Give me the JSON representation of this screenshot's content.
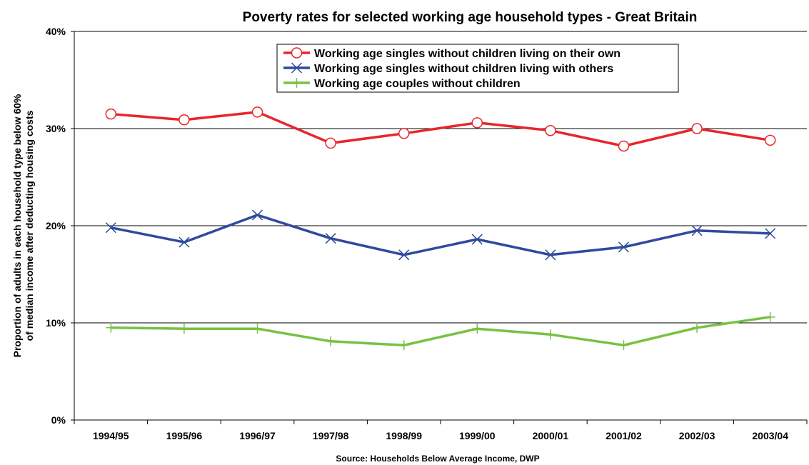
{
  "chart_data": {
    "type": "line",
    "title": "Poverty rates for selected working age household types - Great Britain",
    "ylabel_lines": [
      "Proportion of adults in each household type below 60%",
      "of median income after deducting housing costs"
    ],
    "xlabel": "",
    "source": "Source: Households Below Average Income, DWP",
    "categories": [
      "1994/95",
      "1995/96",
      "1996/97",
      "1997/98",
      "1998/99",
      "1999/00",
      "2000/01",
      "2001/02",
      "2002/03",
      "2003/04"
    ],
    "ylim": [
      0,
      40
    ],
    "yticks": [
      0,
      10,
      20,
      30,
      40
    ],
    "ytick_labels": [
      "0%",
      "10%",
      "20%",
      "30%",
      "40%"
    ],
    "grid": true,
    "legend_position": "top-center",
    "series": [
      {
        "name": "Working age singles without children living on their own",
        "color": "#e8262b",
        "marker": "circle",
        "values": [
          31.5,
          30.9,
          31.7,
          28.5,
          29.5,
          30.6,
          29.8,
          28.2,
          30.0,
          28.8
        ]
      },
      {
        "name": "Working age singles without children living with others",
        "color": "#2f4a9e",
        "marker": "x",
        "values": [
          19.8,
          18.3,
          21.1,
          18.7,
          17.0,
          18.6,
          17.0,
          17.8,
          19.5,
          19.2
        ]
      },
      {
        "name": "Working age couples without children",
        "color": "#78c142",
        "marker": "plus",
        "values": [
          9.5,
          9.4,
          9.4,
          8.1,
          7.7,
          9.4,
          8.8,
          7.7,
          9.5,
          10.6
        ]
      }
    ]
  }
}
